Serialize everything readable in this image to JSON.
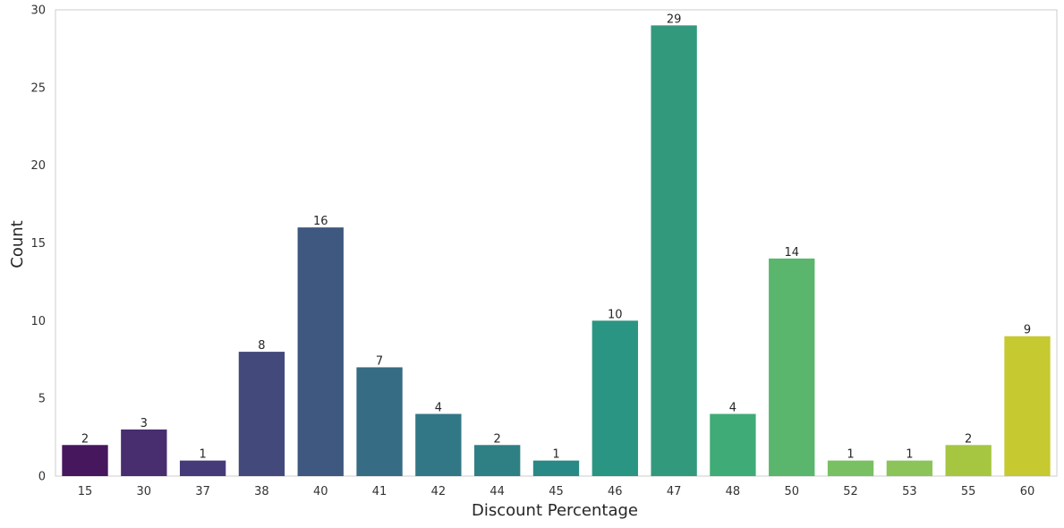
{
  "chart_data": {
    "type": "bar",
    "title": "",
    "xlabel": "Discount Percentage",
    "ylabel": "Count",
    "categories": [
      "15",
      "30",
      "37",
      "38",
      "40",
      "41",
      "42",
      "44",
      "45",
      "46",
      "47",
      "48",
      "50",
      "52",
      "53",
      "55",
      "60"
    ],
    "values": [
      2,
      3,
      1,
      8,
      16,
      7,
      4,
      2,
      1,
      10,
      29,
      4,
      14,
      1,
      1,
      2,
      9
    ],
    "ylim": [
      0,
      30
    ],
    "yticks": [
      "0",
      "5",
      "10",
      "15",
      "20",
      "25",
      "30"
    ],
    "grid": false,
    "legend": "none",
    "colors": [
      "#46175d",
      "#482d6f",
      "#463b79",
      "#434a7b",
      "#3f587f",
      "#366c84",
      "#327785",
      "#2e8085",
      "#288987",
      "#2a9582",
      "#33997d",
      "#3fab76",
      "#5ab56d",
      "#79c062",
      "#8cc45a",
      "#a6c642",
      "#c6c930"
    ]
  }
}
